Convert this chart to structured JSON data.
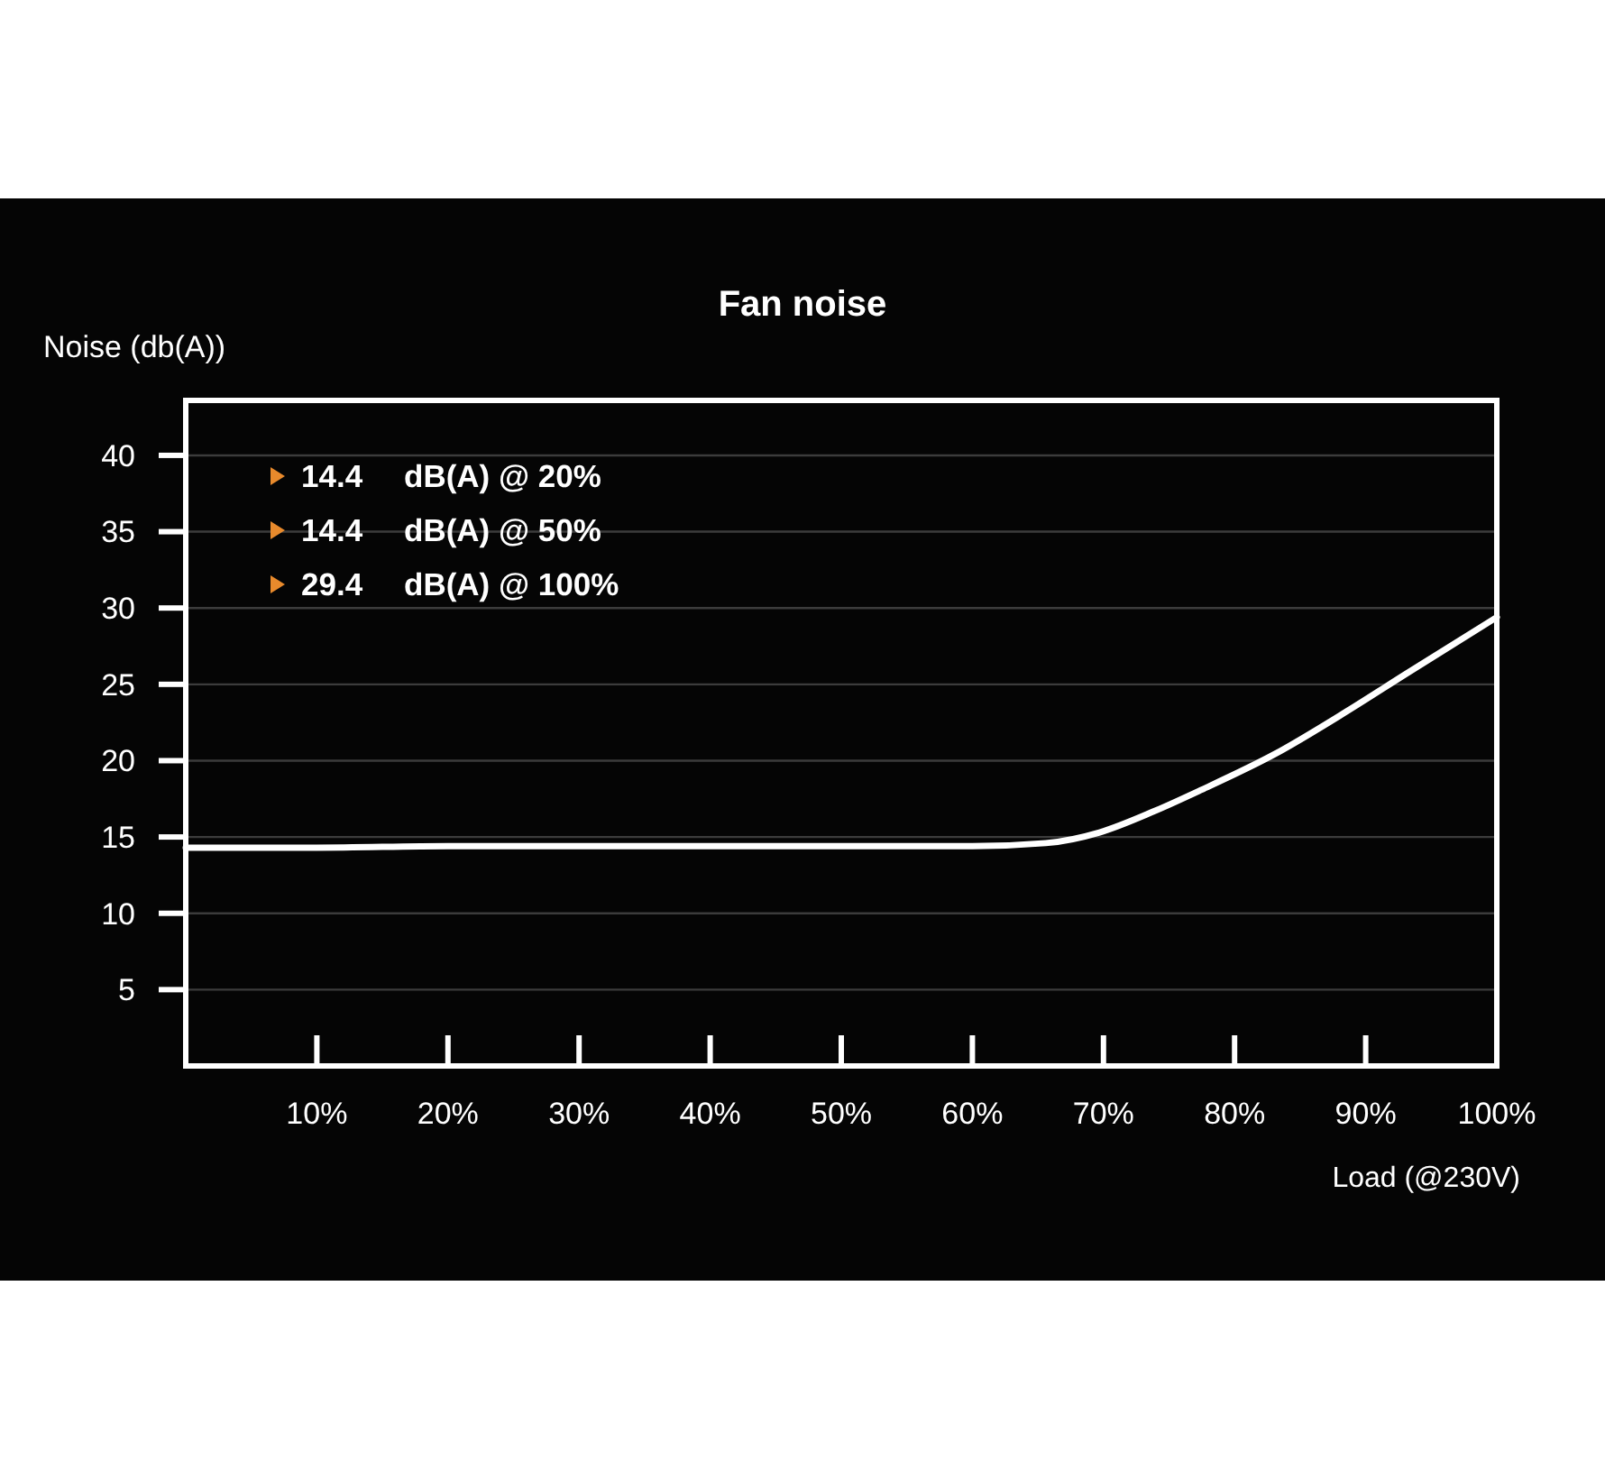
{
  "chart_data": {
    "type": "line",
    "title": "Fan noise",
    "xlabel": "Load (@230V)",
    "ylabel": "Noise (db(A))",
    "x": [
      0,
      10,
      20,
      30,
      40,
      50,
      60,
      65.6,
      69.7,
      73.9,
      77.5,
      83,
      88.5,
      93.1,
      100
    ],
    "values": [
      14.3,
      14.3,
      14.4,
      14.4,
      14.4,
      14.4,
      14.4,
      14.6,
      15.3,
      16.7,
      18.1,
      20.4,
      23.2,
      25.7,
      29.4
    ],
    "color": "#ffffff",
    "xlim": [
      0,
      100
    ],
    "xticks": [
      {
        "value": 10,
        "label": "10%"
      },
      {
        "value": 20,
        "label": "20%"
      },
      {
        "value": 30,
        "label": "30%"
      },
      {
        "value": 40,
        "label": "40%"
      },
      {
        "value": 50,
        "label": "50%"
      },
      {
        "value": 60,
        "label": "60%"
      },
      {
        "value": 70,
        "label": "70%"
      },
      {
        "value": 80,
        "label": "80%"
      },
      {
        "value": 90,
        "label": "90%"
      },
      {
        "value": 100,
        "label": "100%"
      }
    ],
    "ylim": [
      0,
      43.6
    ],
    "yticks": [
      5,
      10,
      15,
      20,
      25,
      30,
      35,
      40
    ],
    "grid": "y",
    "annotations": [
      "14.4 dB(A) @ 20%",
      "14.4 dB(A) @ 50%",
      "29.4 dB(A) @ 100%"
    ]
  }
}
